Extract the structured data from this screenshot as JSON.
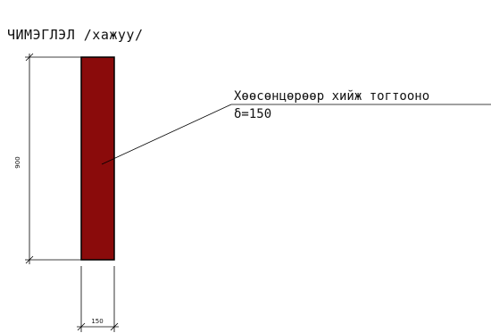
{
  "title": "ЧИМЭГЛЭЛ /хажуу/",
  "callout": {
    "line1": "Хөөсөнцөрөөр хийж тогтооно",
    "line2": "δ=150"
  },
  "dimensions": {
    "height_value": "900",
    "width_value": "150"
  },
  "colors": {
    "wall_fill": "#8a0b0b",
    "wall_outline": "#000000",
    "line": "#000000"
  }
}
